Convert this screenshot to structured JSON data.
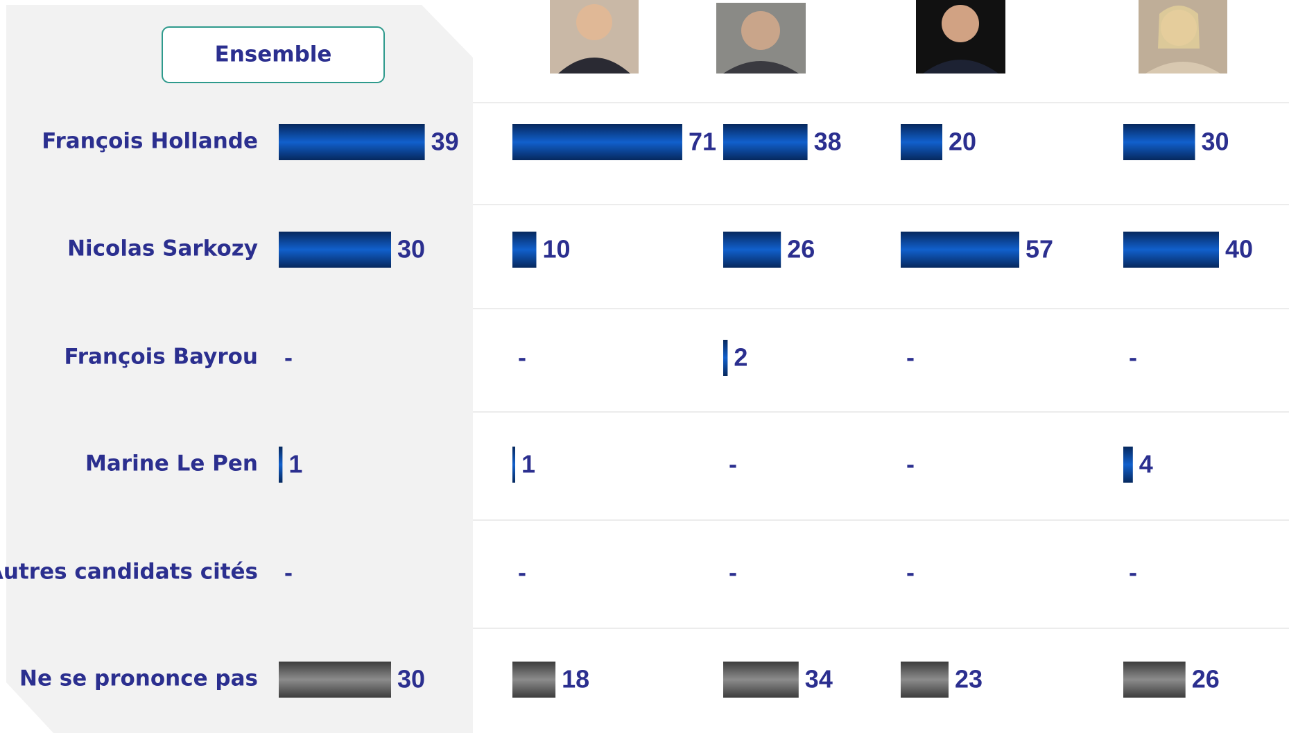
{
  "chart_data": {
    "type": "bar",
    "orientation": "horizontal",
    "categories": [
      "François Hollande",
      "Nicolas Sarkozy",
      "François Bayrou",
      "Marine Le Pen",
      "Autres candidats cités",
      "Ne se prononce pas"
    ],
    "bar_colors": [
      "#1160cc",
      "#1160cc",
      "#1160cc",
      "#1160cc",
      "#1160cc",
      "#8c8c8c"
    ],
    "series": [
      {
        "name": "Ensemble",
        "values": [
          39,
          30,
          null,
          1,
          null,
          30
        ],
        "value_labels": [
          "39",
          "30",
          "-",
          "1",
          "-",
          "30"
        ]
      },
      {
        "values": [
          71,
          10,
          null,
          1,
          null,
          18
        ],
        "value_labels": [
          "71",
          "10",
          "-",
          "1",
          "-",
          "18"
        ]
      },
      {
        "values": [
          38,
          26,
          2,
          null,
          null,
          34
        ],
        "value_labels": [
          "38",
          "26",
          "2",
          "-",
          "-",
          "34"
        ]
      },
      {
        "values": [
          20,
          57,
          null,
          null,
          null,
          23
        ],
        "value_labels": [
          "20",
          "57",
          "-",
          "-",
          "-",
          "23"
        ]
      },
      {
        "values": [
          30,
          40,
          null,
          4,
          null,
          26
        ],
        "value_labels": [
          "30",
          "40",
          "-",
          "4",
          "-",
          "26"
        ]
      }
    ]
  }
}
